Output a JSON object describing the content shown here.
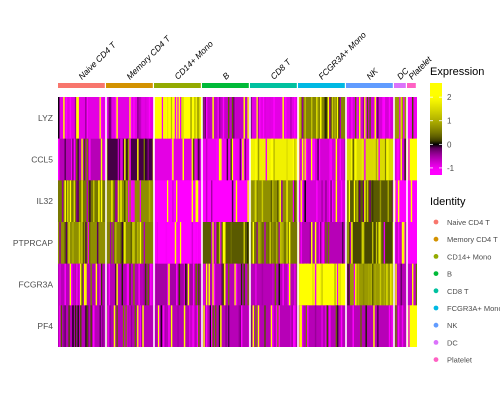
{
  "chart_data": {
    "type": "heatmap",
    "genes": [
      "LYZ",
      "CCL5",
      "IL32",
      "PTPRCAP",
      "FCGR3A",
      "PF4"
    ],
    "groups": [
      {
        "name": "Naive CD4 T",
        "color": "#F8766D"
      },
      {
        "name": "Memory CD4 T",
        "color": "#D39200"
      },
      {
        "name": "CD14+ Mono",
        "color": "#93AA00"
      },
      {
        "name": "B",
        "color": "#00BA38"
      },
      {
        "name": "CD8 T",
        "color": "#00C19F"
      },
      {
        "name": "FCGR3A+ Mono",
        "color": "#00B9E3"
      },
      {
        "name": "NK",
        "color": "#619CFF"
      },
      {
        "name": "DC",
        "color": "#DB72FB"
      },
      {
        "name": "Platelet",
        "color": "#FF61C3"
      }
    ],
    "group_labels": [
      "Naive CD4 T",
      "Memory CD4 T",
      "CD14+ Mono",
      "B",
      "CD8 T",
      "FCGR3A+ Mono",
      "NK",
      "DC",
      "Platelet"
    ],
    "mean_expression": [
      [
        -0.9,
        -0.9,
        2.0,
        -0.7,
        -0.9,
        0.6,
        -0.8,
        0.8,
        -1.0
      ],
      [
        -0.6,
        -0.1,
        -0.9,
        -1.0,
        1.8,
        -0.8,
        1.5,
        -0.8,
        2.4
      ],
      [
        0.5,
        0.7,
        -1.1,
        -1.1,
        0.7,
        -0.8,
        0.3,
        -1.1,
        -1.1
      ],
      [
        0.7,
        0.6,
        -1.1,
        0.3,
        0.5,
        -0.6,
        0.2,
        -0.7,
        -1.1
      ],
      [
        -0.6,
        -0.6,
        -0.5,
        -0.6,
        -0.6,
        2.2,
        0.8,
        -0.6,
        -0.7
      ],
      [
        -0.6,
        -0.6,
        -0.6,
        -0.6,
        -0.6,
        -0.6,
        -0.6,
        -0.6,
        2.6
      ]
    ],
    "color_scale": {
      "low": "#FF00FF",
      "mid": "#000000",
      "high": "#FFFF00",
      "min": -1.3,
      "max": 2.6,
      "ticks": [
        2,
        1,
        0,
        -1
      ],
      "tick_labels": [
        "2",
        "1",
        "0",
        "-1"
      ]
    },
    "legend": {
      "expression_title": "Expression",
      "identity_title": "Identity",
      "position": "right"
    },
    "grid": false
  }
}
